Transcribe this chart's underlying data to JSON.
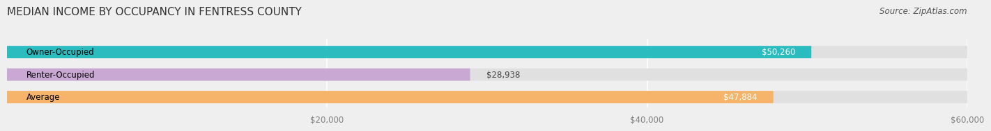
{
  "title": "MEDIAN INCOME BY OCCUPANCY IN FENTRESS COUNTY",
  "source": "Source: ZipAtlas.com",
  "categories": [
    "Owner-Occupied",
    "Renter-Occupied",
    "Average"
  ],
  "values": [
    50260,
    28938,
    47884
  ],
  "bar_colors": [
    "#2bbcbf",
    "#c9a8d4",
    "#f5b469"
  ],
  "value_labels": [
    "$50,260",
    "$28,938",
    "$47,884"
  ],
  "xlim": [
    0,
    60000
  ],
  "xticks": [
    0,
    20000,
    40000,
    60000
  ],
  "xtick_labels": [
    "$20,000",
    "$40,000",
    "$60,000"
  ],
  "background_color": "#efefef",
  "bar_background_color": "#e0e0e0",
  "title_fontsize": 11,
  "source_fontsize": 8.5,
  "label_fontsize": 8.5,
  "value_fontsize": 8.5
}
